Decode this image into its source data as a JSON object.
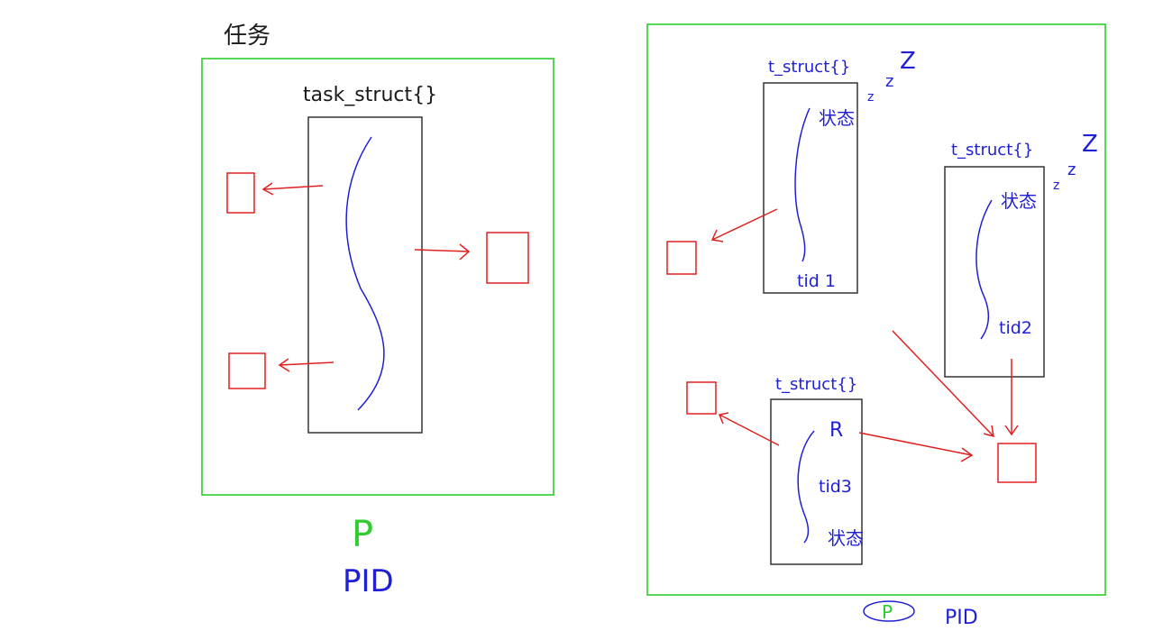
{
  "left_panel": {
    "title": "任务",
    "struct_label": "task_struct{}",
    "process_letter": "P",
    "pid_label": "PID"
  },
  "right_panel": {
    "thread1": {
      "label": "t_struct{}",
      "state": "状态",
      "tid": "tid 1",
      "sleep_marks": [
        "z",
        "z",
        "Z"
      ]
    },
    "thread2": {
      "label": "t_struct{}",
      "state": "状态",
      "tid": "tid2",
      "sleep_marks": [
        "z",
        "z",
        "Z"
      ]
    },
    "thread3": {
      "label": "t_struct{}",
      "running": "R",
      "tid": "tid3",
      "state": "状态"
    },
    "process_letter": "P",
    "pid_label": "PID"
  },
  "colors": {
    "frame": "#2ecc2e",
    "box": "#333333",
    "resource": "#e02020",
    "annotation": "#1f1fd6"
  }
}
